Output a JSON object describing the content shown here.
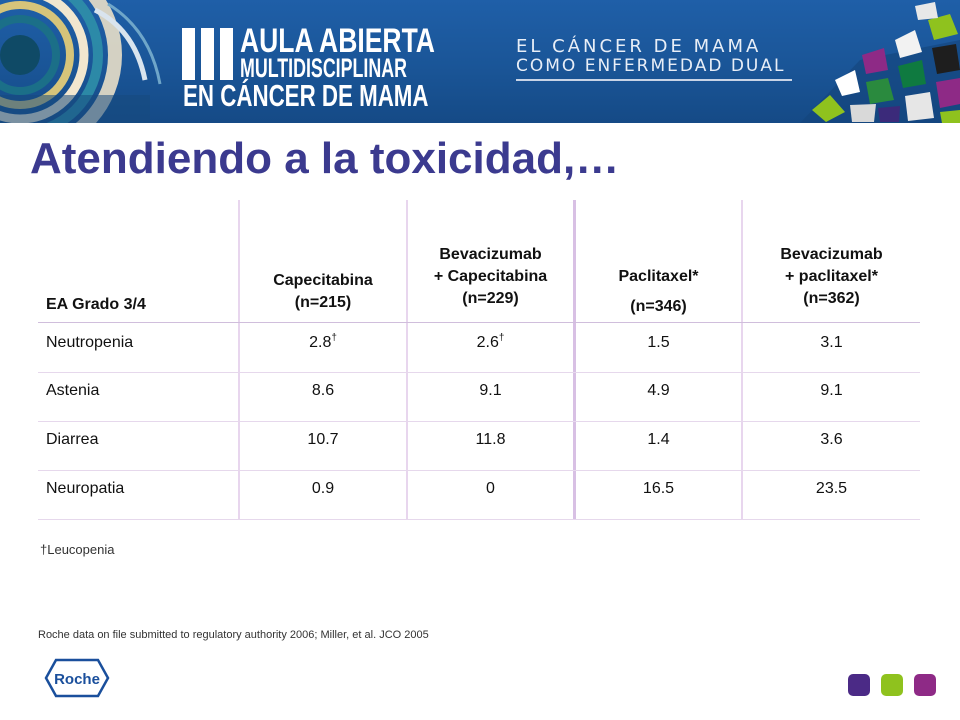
{
  "banner": {
    "logo_line1": "AULA ABIERTA",
    "logo_line2": "MULTIDISCIPLINAR",
    "logo_line3": "EN CÁNCER DE MAMA",
    "tagline_line1": "EL CÁNCER DE MAMA",
    "tagline_line2": "COMO ENFERMEDAD DUAL"
  },
  "title": "Atendiendo a la toxicidad,…",
  "table": {
    "headers": [
      {
        "lines": [
          "EA Grado 3/4"
        ]
      },
      {
        "lines": [
          "Capecitabina",
          "(n=215)"
        ]
      },
      {
        "lines": [
          "Bevacizumab",
          "+ Capecitabina",
          "(n=229)"
        ]
      },
      {
        "lines": [
          "Paclitaxel*",
          "(n=346)"
        ]
      },
      {
        "lines": [
          "Bevacizumab",
          "+ paclitaxel*",
          "(n=362)"
        ]
      }
    ],
    "rows": [
      {
        "label": "Neutropenia",
        "values": [
          "2.8",
          "2.6",
          "1.5",
          "3.1"
        ],
        "dagger": "†"
      },
      {
        "label": "Astenia",
        "values": [
          "8.6",
          "9.1",
          "4.9",
          "9.1"
        ]
      },
      {
        "label": "Diarrea",
        "values": [
          "10.7",
          "11.8",
          "1.4",
          "3.6"
        ]
      },
      {
        "label": "Neuropatia",
        "values": [
          "0.9",
          "0",
          "16.5",
          "23.5"
        ]
      }
    ]
  },
  "footnote": "†Leucopenia",
  "source": "Roche data on file submitted to regulatory authority 2006; Miller, et al. JCO 2005",
  "roche_logo": "Roche",
  "colors": {
    "title": "#3b3a8f",
    "banner": "#1a5597",
    "square_purple": "#4b2a86",
    "square_green": "#8fc21e",
    "square_magenta": "#8e2a86"
  }
}
